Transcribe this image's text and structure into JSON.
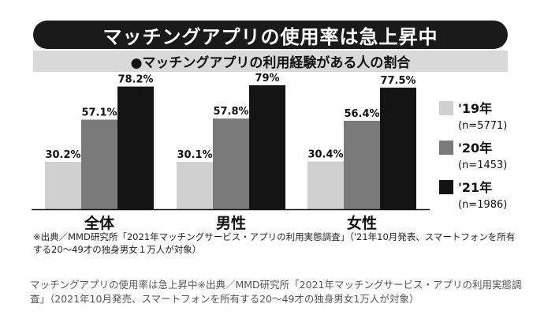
{
  "chart_data": {
    "type": "bar",
    "title": "マッチングアプリの使用率は急上昇中",
    "subtitle": "●マッチングアプリの利用経験がある人の割合",
    "categories": [
      "全体",
      "男性",
      "女性"
    ],
    "series": [
      {
        "name": "'19年",
        "sample": "(n=5771)",
        "color": "#d0d0d0",
        "values": [
          30.2,
          30.1,
          30.4
        ],
        "labels": [
          "30.2%",
          "30.1%",
          "30.4%"
        ]
      },
      {
        "name": "'20年",
        "sample": "(n=1453)",
        "color": "#7a7a7a",
        "values": [
          57.1,
          57.8,
          56.4
        ],
        "labels": [
          "57.1%",
          "57.8%",
          "56.4%"
        ]
      },
      {
        "name": "'21年",
        "sample": "(n=1986)",
        "color": "#141414",
        "values": [
          78.2,
          79,
          77.5
        ],
        "labels": [
          "78.2%",
          "79%",
          "77.5%"
        ]
      }
    ],
    "ylim": [
      0,
      80
    ],
    "grid": false,
    "legend_position": "right"
  },
  "source_note": "※出典／MMD研究所「2021年マッチングサービス・アプリの利用実態調査」（'21年10月発表、スマートフォンを所有する20～49才の独身男女１万人が対象）",
  "caption": "マッチングアプリの使用率は急上昇中※出典／MMD研究所「2021年マッチングサービス・アプリの利用実態調査」（2021年10月発売、スマートフォンを所有する20～49才の独身男女1万人が対象）"
}
